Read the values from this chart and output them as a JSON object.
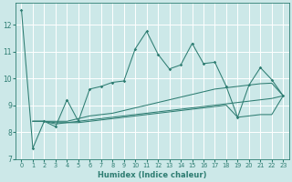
{
  "title": "",
  "xlabel": "Humidex (Indice chaleur)",
  "background_color": "#cce8e8",
  "grid_color": "#ffffff",
  "line_color": "#2e7d72",
  "xlim": [
    -0.5,
    23.5
  ],
  "ylim": [
    7,
    12.8
  ],
  "yticks": [
    7,
    8,
    9,
    10,
    11,
    12
  ],
  "xticks": [
    0,
    1,
    2,
    3,
    4,
    5,
    6,
    7,
    8,
    9,
    10,
    11,
    12,
    13,
    14,
    15,
    16,
    17,
    18,
    19,
    20,
    21,
    22,
    23
  ],
  "x_main": [
    0,
    1,
    2,
    3,
    4,
    5,
    6,
    7,
    8,
    9,
    10,
    11,
    12,
    13,
    14,
    15,
    16,
    17,
    18,
    19,
    20,
    21,
    22,
    23
  ],
  "line_main": [
    12.55,
    7.4,
    8.4,
    8.2,
    9.2,
    8.4,
    9.6,
    9.7,
    9.85,
    9.9,
    11.1,
    11.75,
    10.9,
    10.35,
    10.5,
    11.3,
    10.55,
    10.6,
    9.7,
    8.55,
    9.75,
    10.4,
    9.95,
    9.35
  ],
  "x_flat": [
    1,
    2,
    3,
    4,
    5,
    6,
    7,
    8,
    9,
    10,
    11,
    12,
    13,
    14,
    15,
    16,
    17,
    18,
    19,
    20,
    21,
    22,
    23
  ],
  "line_upper": [
    8.4,
    8.4,
    8.4,
    8.4,
    8.5,
    8.6,
    8.65,
    8.7,
    8.8,
    8.9,
    9.0,
    9.1,
    9.2,
    9.3,
    9.4,
    9.5,
    9.6,
    9.65,
    9.7,
    9.75,
    9.8,
    9.82,
    9.35
  ],
  "line_mid": [
    8.4,
    8.4,
    8.35,
    8.35,
    8.4,
    8.45,
    8.5,
    8.55,
    8.6,
    8.65,
    8.7,
    8.75,
    8.8,
    8.85,
    8.9,
    8.95,
    9.0,
    9.05,
    9.1,
    9.15,
    9.2,
    9.25,
    9.35
  ],
  "line_lower": [
    8.4,
    8.4,
    8.3,
    8.35,
    8.35,
    8.4,
    8.45,
    8.5,
    8.55,
    8.6,
    8.65,
    8.7,
    8.75,
    8.8,
    8.85,
    8.9,
    8.95,
    9.0,
    8.55,
    8.6,
    8.65,
    8.65,
    9.35
  ]
}
